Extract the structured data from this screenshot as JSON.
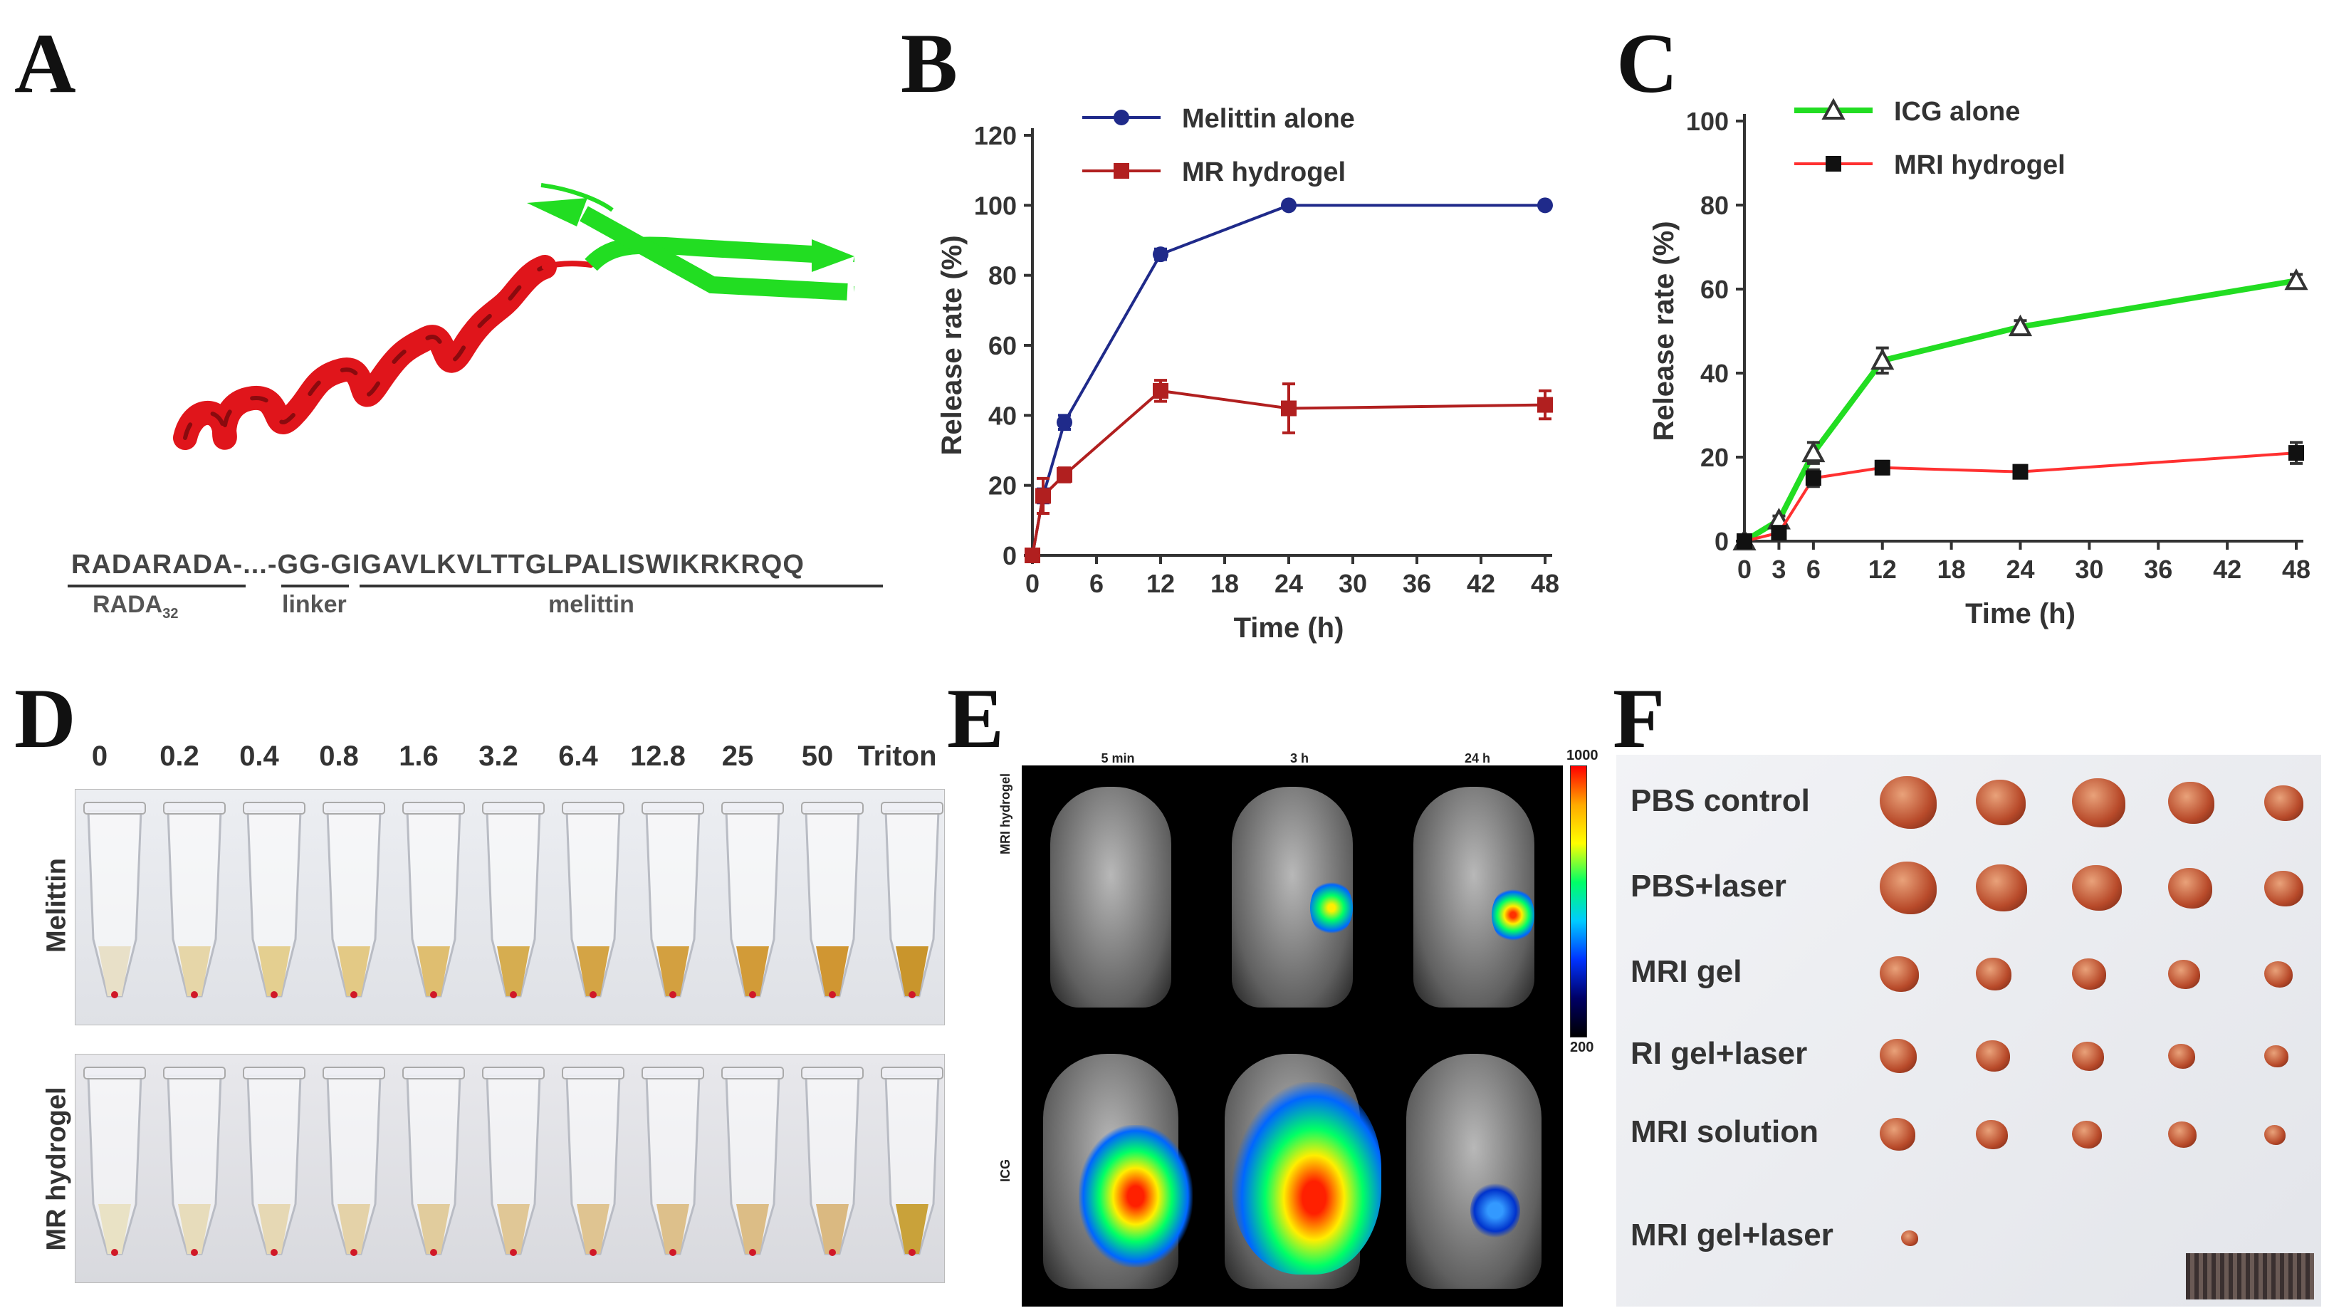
{
  "panels": {
    "A": {
      "letter": "A",
      "sequence": "RADARADA-...-GG-GIGAVLKVLTTGLPALISWIKRKRQQ",
      "segments": [
        {
          "label": "RADA",
          "subscript": "32"
        },
        {
          "label": "linker"
        },
        {
          "label": "melittin"
        }
      ]
    },
    "B": {
      "letter": "B"
    },
    "C": {
      "letter": "C"
    },
    "D": {
      "letter": "D",
      "concentrations": [
        "0",
        "0.2",
        "0.4",
        "0.8",
        "1.6",
        "3.2",
        "6.4",
        "12.8",
        "25",
        "50",
        "Triton"
      ],
      "rows": [
        "Melittin",
        "MR hydrogel"
      ]
    },
    "E": {
      "letter": "E",
      "timepoints": [
        "5 min",
        "3 h",
        "24 h"
      ],
      "rows": [
        "MRI hydrogel",
        "ICG"
      ],
      "scale_max": "1000",
      "scale_min": "200"
    },
    "F": {
      "letter": "F",
      "groups": [
        "PBS control",
        "PBS+laser",
        "MRI gel",
        "RI gel+laser",
        "MRI solution",
        "MRI gel+laser"
      ]
    }
  },
  "chart_data": [
    {
      "id": "B",
      "type": "line",
      "title": "",
      "xlabel": "Time (h)",
      "ylabel": "Release rate (%)",
      "xlim": [
        0,
        48
      ],
      "ylim": [
        0,
        120
      ],
      "xticks": [
        0,
        6,
        12,
        18,
        24,
        30,
        36,
        42,
        48
      ],
      "yticks": [
        0,
        20,
        40,
        60,
        80,
        100,
        120
      ],
      "legend_position": "top-left",
      "series": [
        {
          "name": "Melittin alone",
          "color": "#1f2a8a",
          "marker": "circle",
          "x": [
            0,
            1,
            3,
            12,
            24,
            48
          ],
          "y": [
            0,
            17,
            38,
            86,
            100,
            100
          ],
          "err": [
            0,
            2,
            2,
            1.5,
            0.5,
            0.5
          ]
        },
        {
          "name": "MR hydrogel",
          "color": "#b11f1f",
          "marker": "square",
          "x": [
            0,
            1,
            3,
            12,
            24,
            48
          ],
          "y": [
            0,
            17,
            23,
            47,
            42,
            43
          ],
          "err": [
            0,
            5,
            2,
            3,
            7,
            4
          ]
        }
      ]
    },
    {
      "id": "C",
      "type": "line",
      "title": "",
      "xlabel": "Time (h)",
      "ylabel": "Release rate (%)",
      "xlim": [
        0,
        48
      ],
      "ylim": [
        0,
        100
      ],
      "xticks": [
        0,
        3,
        6,
        12,
        18,
        24,
        30,
        36,
        42,
        48
      ],
      "yticks": [
        0,
        20,
        40,
        60,
        80,
        100
      ],
      "legend_position": "top-left",
      "series": [
        {
          "name": "ICG alone",
          "color": "#22dd22",
          "marker": "triangle",
          "x": [
            0,
            3,
            6,
            12,
            24,
            48
          ],
          "y": [
            0,
            5,
            21,
            43,
            51,
            62
          ],
          "err": [
            0,
            1,
            2.5,
            3,
            1.5,
            1.5
          ]
        },
        {
          "name": "MRI hydrogel",
          "color": "#ff3030",
          "marker": "square",
          "x": [
            0,
            3,
            6,
            12,
            24,
            48
          ],
          "y": [
            0,
            2,
            15,
            17.5,
            16.5,
            21
          ],
          "err": [
            0,
            1,
            2,
            1.5,
            1.5,
            2.5
          ]
        }
      ]
    }
  ]
}
